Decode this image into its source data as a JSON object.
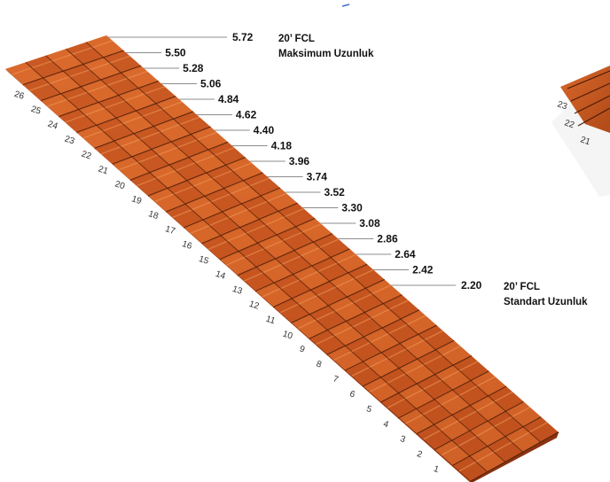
{
  "diagram": {
    "roof_rows": {
      "count": 26,
      "row_numbers": [
        "1",
        "2",
        "3",
        "4",
        "5",
        "6",
        "7",
        "8",
        "9",
        "10",
        "11",
        "12",
        "13",
        "14",
        "15",
        "16",
        "17",
        "18",
        "19",
        "20",
        "21",
        "22",
        "23",
        "24",
        "25",
        "26"
      ]
    },
    "length_marks": [
      "5.72",
      "5.50",
      "5.28",
      "5.06",
      "4.84",
      "4.62",
      "4.40",
      "4.18",
      "3.96",
      "3.74",
      "3.52",
      "3.30",
      "3.08",
      "2.86",
      "2.64",
      "2.42",
      "2.20"
    ],
    "annotation_max": {
      "line1": "20’ FCL",
      "line2": "Maksimum Uzunluk"
    },
    "annotation_std": {
      "line1": "20’ FCL",
      "line2": "Standart Uzunluk"
    },
    "second_panel": {
      "row_numbers": [
        "23",
        "22",
        "21"
      ]
    },
    "colors": {
      "tile_light": "#d8672a",
      "tile_mid": "#c65520",
      "tile_dark": "#8a3210",
      "groove": "#4a1c08",
      "leader_line": "#8c8c8c",
      "background": "#ffffff"
    }
  }
}
